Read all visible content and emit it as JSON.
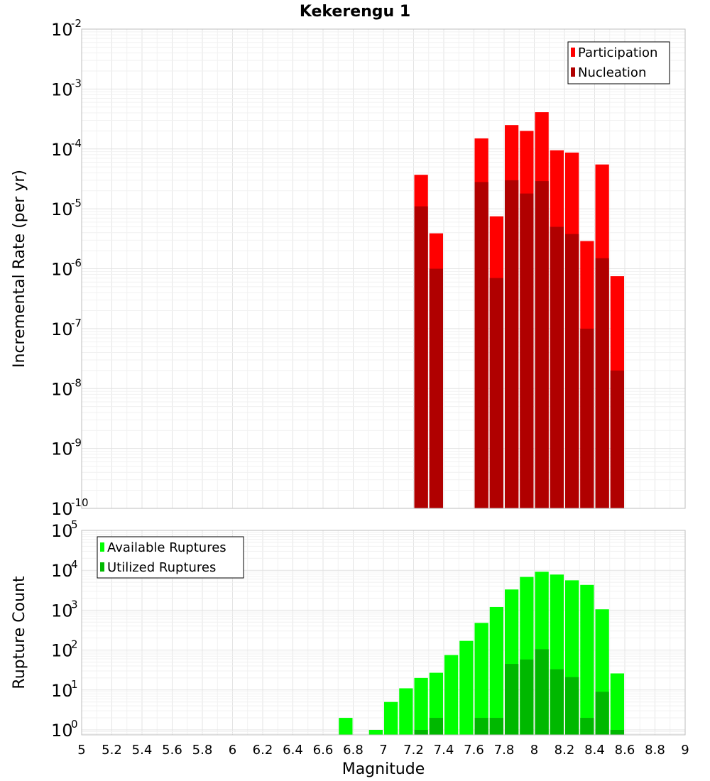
{
  "title": "Kekerengu 1",
  "colors": {
    "participation": "#ff0000",
    "nucleation": "#b00000",
    "available": "#00ff00",
    "utilized": "#00b800",
    "grid_major": "#e3e3e3",
    "grid_minor": "#f1f1f1",
    "frame": "#bdbdbd"
  },
  "chart_data": [
    {
      "type": "bar",
      "title": "Kekerengu 1",
      "ylabel": "Incremental Rate (per yr)",
      "xlabel": "",
      "yscale": "log",
      "ylim": [
        1e-10,
        0.01
      ],
      "xlim": [
        5,
        9
      ],
      "bin_width": 0.1,
      "legend_position": "top-right",
      "grid": true,
      "y_ticks": [
        {
          "base": "10",
          "exp": "-10"
        },
        {
          "base": "10",
          "exp": "-9"
        },
        {
          "base": "10",
          "exp": "-8"
        },
        {
          "base": "10",
          "exp": "-7"
        },
        {
          "base": "10",
          "exp": "-6"
        },
        {
          "base": "10",
          "exp": "-5"
        },
        {
          "base": "10",
          "exp": "-4"
        },
        {
          "base": "10",
          "exp": "-3"
        },
        {
          "base": "10",
          "exp": "-2"
        }
      ],
      "series": [
        {
          "name": "Participation",
          "color": "#ff0000",
          "x": [
            7.25,
            7.35,
            7.65,
            7.75,
            7.85,
            7.95,
            8.05,
            8.15,
            8.25,
            8.35,
            8.45,
            8.55
          ],
          "values": [
            3.7e-05,
            3.9e-06,
            0.00015,
            7.5e-06,
            0.00025,
            0.0002,
            0.00041,
            9.5e-05,
            8.7e-05,
            2.9e-06,
            5.5e-05,
            7.5e-07
          ]
        },
        {
          "name": "Nucleation",
          "color": "#b00000",
          "x": [
            7.25,
            7.35,
            7.65,
            7.75,
            7.85,
            7.95,
            8.05,
            8.15,
            8.25,
            8.35,
            8.45,
            8.55
          ],
          "values": [
            1.1e-05,
            1e-06,
            2.8e-05,
            7e-07,
            3e-05,
            1.8e-05,
            2.9e-05,
            5e-06,
            3.8e-06,
            1e-07,
            1.5e-06,
            2e-08
          ]
        }
      ]
    },
    {
      "type": "bar",
      "title": "",
      "ylabel": "Rupture Count",
      "xlabel": "Magnitude",
      "yscale": "log",
      "ylim": [
        0.75,
        100000
      ],
      "xlim": [
        5,
        9
      ],
      "bin_width": 0.1,
      "legend_position": "top-left",
      "grid": true,
      "x_ticks": [
        "5",
        "5.2",
        "5.4",
        "5.6",
        "5.8",
        "6",
        "6.2",
        "6.4",
        "6.6",
        "6.8",
        "7",
        "7.2",
        "7.4",
        "7.6",
        "7.8",
        "8",
        "8.2",
        "8.4",
        "8.6",
        "8.8",
        "9"
      ],
      "y_ticks": [
        {
          "base": "10",
          "exp": "0"
        },
        {
          "base": "10",
          "exp": "1"
        },
        {
          "base": "10",
          "exp": "2"
        },
        {
          "base": "10",
          "exp": "3"
        },
        {
          "base": "10",
          "exp": "4"
        },
        {
          "base": "10",
          "exp": "5"
        }
      ],
      "series": [
        {
          "name": "Available Ruptures",
          "color": "#00ff00",
          "x": [
            6.75,
            6.95,
            7.05,
            7.15,
            7.25,
            7.35,
            7.45,
            7.55,
            7.65,
            7.75,
            7.85,
            7.95,
            8.05,
            8.15,
            8.25,
            8.35,
            8.45,
            8.55
          ],
          "values": [
            2,
            1,
            5,
            11,
            20,
            27,
            75,
            170,
            480,
            1200,
            3300,
            6800,
            9200,
            7800,
            5600,
            4300,
            1050,
            26
          ]
        },
        {
          "name": "Utilized Ruptures",
          "color": "#00b800",
          "x": [
            7.25,
            7.35,
            7.65,
            7.75,
            7.85,
            7.95,
            8.05,
            8.15,
            8.25,
            8.35,
            8.45,
            8.55
          ],
          "values": [
            1,
            2,
            2,
            2,
            45,
            58,
            105,
            33,
            21,
            2,
            9,
            1
          ]
        }
      ]
    }
  ]
}
